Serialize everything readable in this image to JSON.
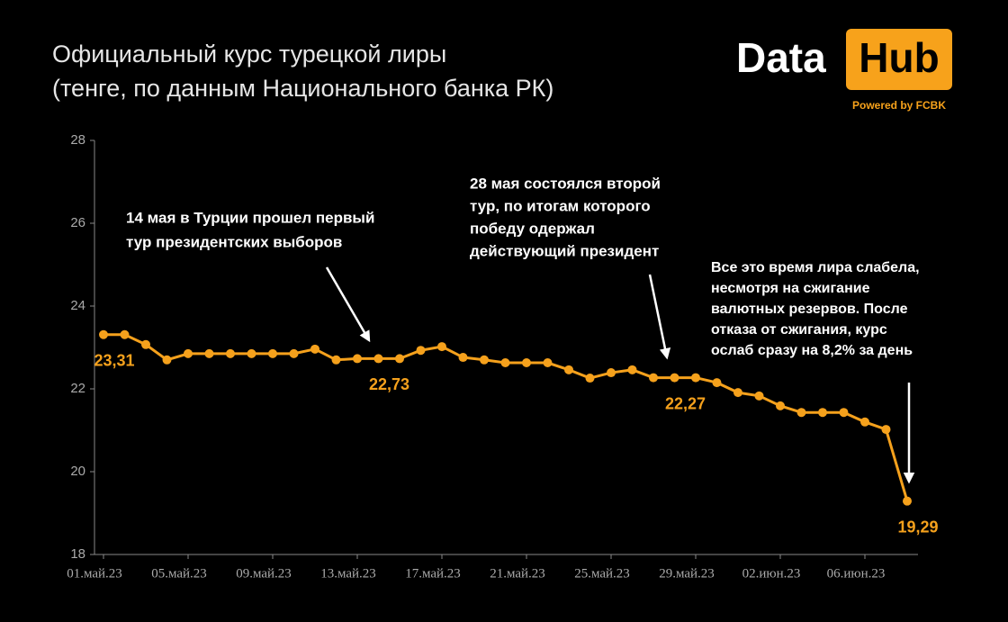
{
  "chart_data": {
    "type": "line",
    "title": [
      "Официальный курс турецкой лиры",
      "(тенге, по данным Национального банка РК)"
    ],
    "logo": {
      "name": "Data",
      "badge": "Hub",
      "tagline": "Powered by FCBK"
    },
    "categories": [
      "01.май.23",
      null,
      null,
      null,
      "05.май.23",
      null,
      null,
      null,
      "09.май.23",
      null,
      null,
      null,
      "13.май.23",
      null,
      null,
      null,
      "17.май.23",
      null,
      null,
      null,
      "21.май.23",
      null,
      null,
      null,
      "25.май.23",
      null,
      null,
      null,
      "29.май.23",
      null,
      null,
      null,
      "02.июн.23",
      null,
      null,
      null,
      "06.июн.23",
      null,
      null
    ],
    "series": [
      {
        "name": "Курс",
        "color": "#f5a11c",
        "values": [
          23.31,
          23.31,
          23.07,
          22.7,
          22.85,
          22.85,
          22.85,
          22.85,
          22.85,
          22.85,
          22.96,
          22.7,
          22.73,
          22.73,
          22.73,
          22.93,
          23.02,
          22.76,
          22.7,
          22.63,
          22.63,
          22.63,
          22.46,
          22.26,
          22.39,
          22.46,
          22.27,
          22.27,
          22.27,
          22.15,
          21.91,
          21.83,
          21.59,
          21.43,
          21.43,
          21.43,
          21.2,
          21.02,
          19.29
        ],
        "value_labels": [
          "23,31",
          null,
          null,
          null,
          null,
          null,
          null,
          null,
          null,
          null,
          null,
          null,
          null,
          "22,73",
          null,
          null,
          null,
          null,
          null,
          null,
          null,
          null,
          null,
          null,
          null,
          null,
          null,
          "22,27",
          null,
          null,
          null,
          null,
          null,
          null,
          null,
          null,
          null,
          null,
          "19,29"
        ]
      }
    ],
    "ylim": [
      18,
      28
    ],
    "yticks": [
      18,
      20,
      22,
      24,
      26,
      28
    ],
    "grid": false,
    "annotations": [
      {
        "lines": [
          "14 мая в Турции прошел первый",
          "тур президентских выборов"
        ]
      },
      {
        "lines": [
          "28 мая состоялся второй",
          "тур, по итогам которого",
          "победу одержал",
          "действующий президент"
        ]
      },
      {
        "lines": [
          "Все это время лира слабела,",
          "несмотря на сжигание",
          "валютных резервов. После",
          "отказа от сжигания, курс",
          "ослаб сразу на 8,2% за день"
        ]
      }
    ]
  }
}
